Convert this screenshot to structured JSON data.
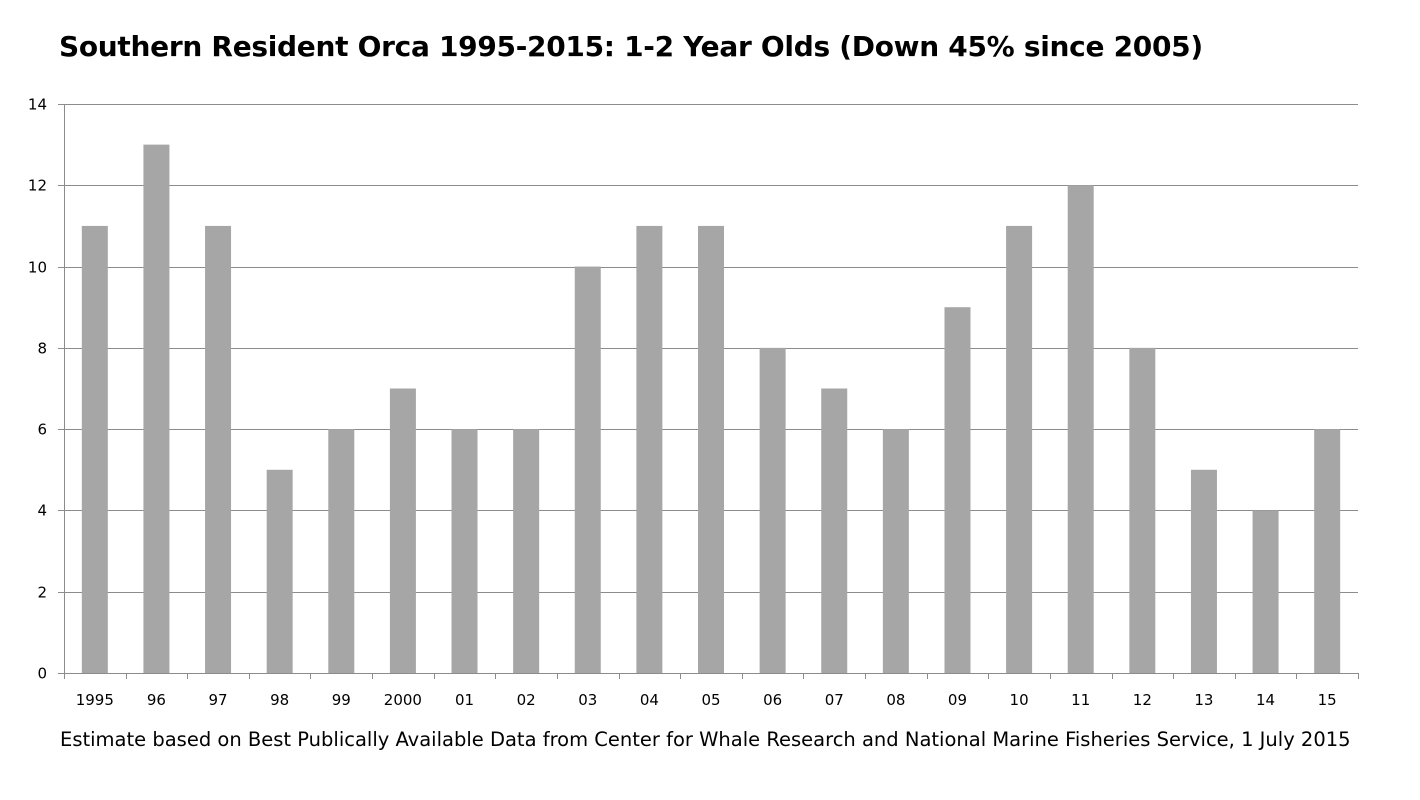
{
  "chart_data": {
    "type": "bar",
    "title": "Southern Resident Orca 1995-2015: 1-2 Year Olds (Down 45% since 2005)",
    "note": "Estimate based on Best Publically Available Data from Center for Whale Research and National Marine Fisheries Service, 1 July 2015",
    "xlabel": "",
    "ylabel": "",
    "categories": [
      "1995",
      "96",
      "97",
      "98",
      "99",
      "2000",
      "01",
      "02",
      "03",
      "04",
      "05",
      "06",
      "07",
      "08",
      "09",
      "10",
      "11",
      "12",
      "13",
      "14",
      "15"
    ],
    "values": [
      11,
      13,
      11,
      5,
      6,
      7,
      6,
      6,
      10,
      11,
      11,
      8,
      7,
      6,
      9,
      11,
      12,
      8,
      5,
      4,
      6
    ],
    "ylim": [
      0,
      14
    ],
    "yticks": [
      0,
      2,
      4,
      6,
      8,
      10,
      12,
      14
    ],
    "grid": true,
    "legend": "none",
    "bar_color": "#a6a6a6",
    "grid_color": "#8c8c8c"
  }
}
